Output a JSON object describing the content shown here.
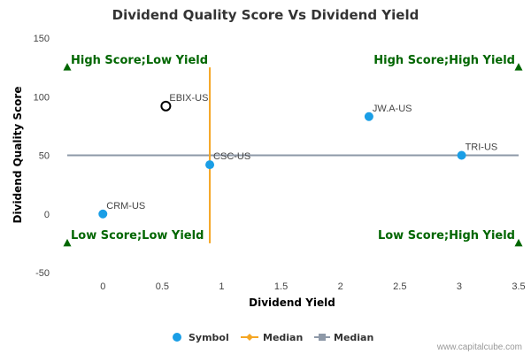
{
  "chart_data": {
    "type": "scatter",
    "title": "Dividend Quality Score Vs Dividend Yield",
    "xlabel": "Dividend Yield",
    "ylabel": "Dividend Quality Score",
    "xlim": [
      -0.3,
      3.5
    ],
    "ylim": [
      -50,
      150
    ],
    "x_ticks": [
      "0",
      "0.5",
      "1",
      "1.5",
      "2",
      "2.5",
      "3",
      "3.5"
    ],
    "y_ticks": [
      "150",
      "100",
      "50",
      "0",
      "-50"
    ],
    "x_tick_values": [
      0,
      0.5,
      1,
      1.5,
      2,
      2.5,
      3,
      3.5
    ],
    "y_tick_values": [
      150,
      100,
      50,
      0,
      -50
    ],
    "grid": false,
    "series": [
      {
        "name": "Symbol",
        "color": "#1a9ee6",
        "points": [
          {
            "label": "JW.A-US",
            "x": 2.24,
            "y": 83,
            "highlight": false
          },
          {
            "label": "TRI-US",
            "x": 3.02,
            "y": 50,
            "highlight": false
          },
          {
            "label": "CSC-US",
            "x": 0.9,
            "y": 42,
            "highlight": false
          },
          {
            "label": "CRM-US",
            "x": 0.0,
            "y": 0,
            "highlight": false
          },
          {
            "label": "EBIX-US",
            "x": 0.53,
            "y": 92,
            "highlight": true
          }
        ]
      }
    ],
    "median_x": {
      "name": "Median",
      "value": 0.9,
      "color": "#f5a623",
      "y_range": [
        -25,
        125
      ]
    },
    "median_y": {
      "name": "Median",
      "value": 50,
      "color": "#8e99a8",
      "x_range": [
        -0.3,
        3.5
      ]
    },
    "quadrant_labels": [
      {
        "text": "High Score;Low Yield",
        "corner": "top-left"
      },
      {
        "text": "High Score;High Yield",
        "corner": "top-right"
      },
      {
        "text": "Low Score;Low Yield",
        "corner": "bottom-left"
      },
      {
        "text": "Low Score;High Yield",
        "corner": "bottom-right"
      }
    ],
    "quadrant_color": "#006600",
    "marker_values": [
      125,
      -25
    ],
    "legend": {
      "placement": "bottom-center",
      "items": [
        "Symbol",
        "Median",
        "Median"
      ]
    }
  },
  "credit": "www.capitalcube.com"
}
